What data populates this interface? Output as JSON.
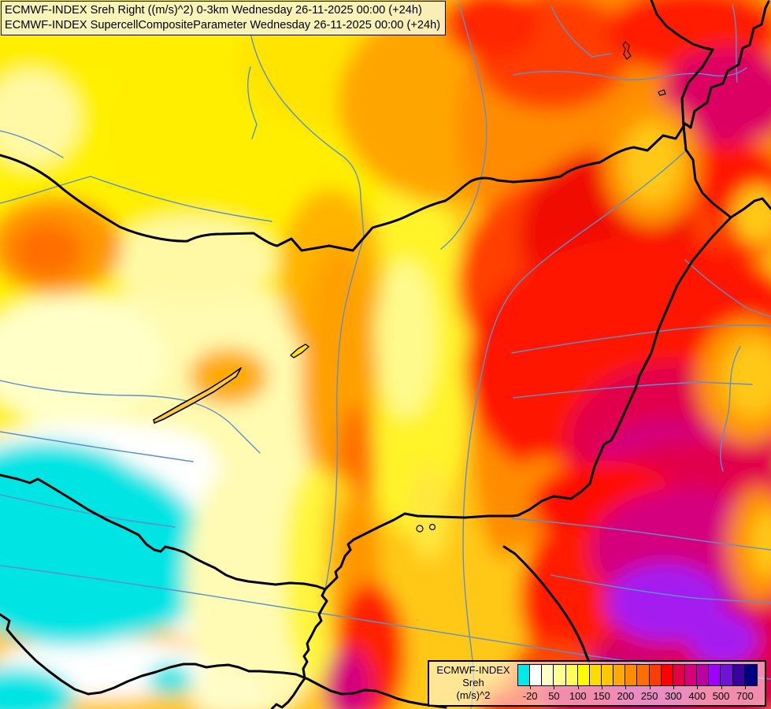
{
  "title_box": {
    "line1": "ECMWF-INDEX Sreh Right ((m/s)^2) 0-3km Wednesday 26-11-2025 00:00 (+24h)",
    "line2": "ECMWF-INDEX SupercellCompositeParameter Wednesday 26-11-2025 00:00 (+24h)"
  },
  "legend": {
    "title": "ECMWF-INDEX",
    "parameter": "Sreh",
    "units": "(m/s)^2",
    "swatches": [
      "#00E8E8",
      "#FFFFFF",
      "#FFFFC8",
      "#FFFF96",
      "#FFFF5A",
      "#FFFF00",
      "#FFDC00",
      "#FFC800",
      "#FFAA00",
      "#FF8C00",
      "#FF6E00",
      "#FF3C00",
      "#FF0000",
      "#E60046",
      "#D4007D",
      "#BE00A5",
      "#A000FF",
      "#6E14D2",
      "#3C00A0",
      "#000082"
    ],
    "labels": [
      "-20",
      "50",
      "100",
      "150",
      "200",
      "250",
      "300",
      "400",
      "500",
      "700"
    ],
    "label_boundaries": [
      1,
      3,
      5,
      7,
      9,
      11,
      13,
      15,
      17,
      19
    ]
  },
  "map": {
    "border_color": "#000000",
    "river_color": "#5E8FCC",
    "low_value_color": "#00E4E4",
    "high_value_color": "#A000FF"
  }
}
